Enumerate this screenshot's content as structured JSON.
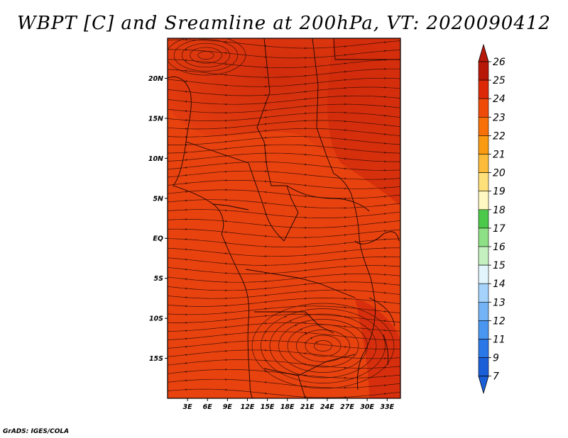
{
  "title": "WBPT [C] and Sreamline at 200hPa, VT: 2020090412",
  "credit": "GrADS: IGES/COLA",
  "map": {
    "lat_labels": [
      "20N",
      "15N",
      "10N",
      "5N",
      "EQ",
      "5S",
      "10S",
      "15S"
    ],
    "lat_values": [
      20,
      15,
      10,
      5,
      0,
      -5,
      -10,
      -15
    ],
    "lon_labels": [
      "3E",
      "6E",
      "9E",
      "12E",
      "15E",
      "18E",
      "21E",
      "24E",
      "27E",
      "30E",
      "33E"
    ],
    "lon_values": [
      3,
      6,
      9,
      12,
      15,
      18,
      21,
      24,
      27,
      30,
      33
    ],
    "lon_range": [
      0,
      35
    ],
    "lat_range": [
      -20,
      25
    ],
    "field_colors": {
      "low": "#e83a10",
      "mid": "#e8400e",
      "high": "#d42a0c"
    }
  },
  "colorbar": {
    "labels": [
      "7",
      "9",
      "11",
      "12",
      "13",
      "14",
      "15",
      "16",
      "17",
      "18",
      "19",
      "20",
      "21",
      "22",
      "23",
      "24",
      "25",
      "26"
    ],
    "colors": [
      "#1a5fd8",
      "#2a78e8",
      "#4a96f0",
      "#74b4f6",
      "#a4d2fa",
      "#e2f4fc",
      "#c4f0c0",
      "#8ee086",
      "#4cc84a",
      "#fff8c0",
      "#fee07a",
      "#fcbc3a",
      "#fa9a10",
      "#f87008",
      "#f04a08",
      "#dc2a08",
      "#b81808"
    ],
    "low_arrow_color": "#1a5fd8",
    "high_arrow_color": "#b81808"
  }
}
